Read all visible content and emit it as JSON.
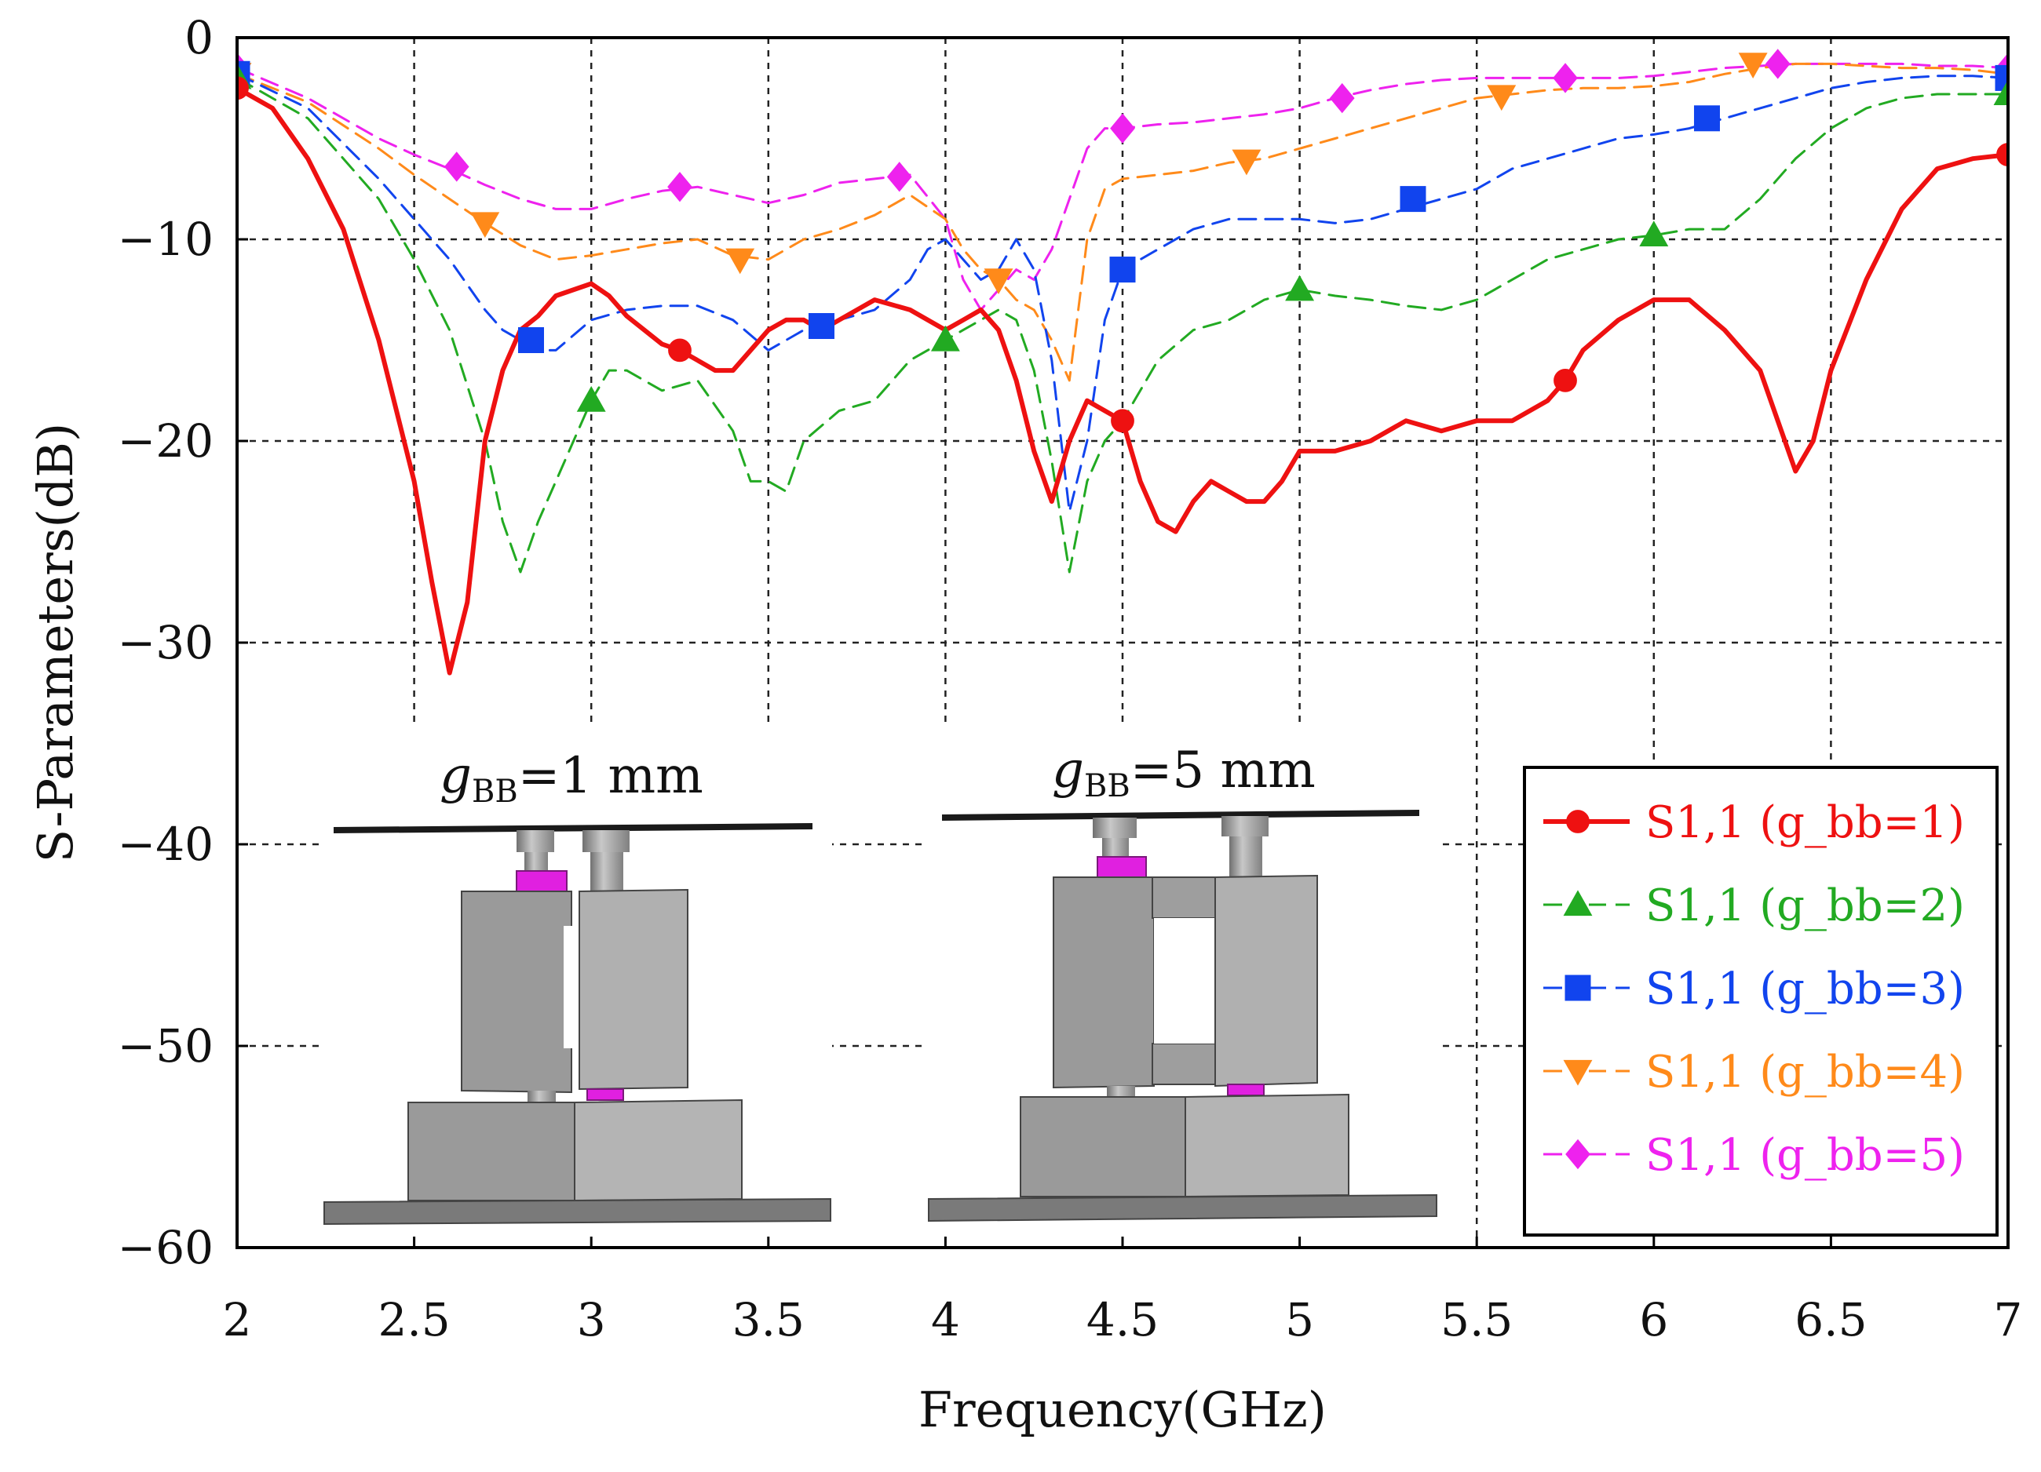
{
  "chart_data": {
    "type": "line",
    "title": "",
    "xlabel": "Frequency(GHz)",
    "ylabel": "S-Parameters(dB)",
    "xlim": [
      2,
      7
    ],
    "ylim": [
      -60,
      0
    ],
    "xticks": [
      2,
      2.5,
      3,
      3.5,
      4,
      4.5,
      5,
      5.5,
      6,
      6.5,
      7
    ],
    "xtick_labels": [
      "2",
      "2.5",
      "3",
      "3.5",
      "4",
      "4.5",
      "5",
      "5.5",
      "6",
      "6.5",
      "7"
    ],
    "yticks": [
      0,
      -10,
      -20,
      -30,
      -40,
      -50,
      -60
    ],
    "ytick_labels": [
      "0",
      "−10",
      "−20",
      "−30",
      "−40",
      "−50",
      "−60"
    ],
    "grid": true,
    "legend_position": "bottom-right",
    "series": [
      {
        "name": "S1,1 (g_bb=1)",
        "color": "#ee1111",
        "marker": "circle",
        "dash": "solid",
        "x": [
          2.0,
          2.1,
          2.2,
          2.3,
          2.4,
          2.5,
          2.55,
          2.6,
          2.65,
          2.7,
          2.75,
          2.8,
          2.85,
          2.9,
          3.0,
          3.05,
          3.1,
          3.2,
          3.25,
          3.3,
          3.35,
          3.4,
          3.5,
          3.55,
          3.6,
          3.65,
          3.7,
          3.8,
          3.9,
          4.0,
          4.05,
          4.1,
          4.15,
          4.2,
          4.25,
          4.3,
          4.35,
          4.4,
          4.45,
          4.5,
          4.55,
          4.6,
          4.65,
          4.7,
          4.75,
          4.8,
          4.85,
          4.9,
          4.95,
          5.0,
          5.05,
          5.1,
          5.2,
          5.3,
          5.4,
          5.5,
          5.6,
          5.7,
          5.75,
          5.8,
          5.9,
          6.0,
          6.1,
          6.2,
          6.3,
          6.35,
          6.4,
          6.45,
          6.5,
          6.6,
          6.7,
          6.8,
          6.9,
          7.0
        ],
        "y": [
          -2.5,
          -3.5,
          -6.0,
          -9.5,
          -15.0,
          -22.0,
          -27.0,
          -31.5,
          -28.0,
          -20.0,
          -16.5,
          -14.5,
          -13.8,
          -12.8,
          -12.2,
          -12.8,
          -13.8,
          -15.2,
          -15.5,
          -16.0,
          -16.5,
          -16.5,
          -14.5,
          -14.0,
          -14.0,
          -14.5,
          -14.0,
          -13.0,
          -13.5,
          -14.5,
          -14.0,
          -13.5,
          -14.5,
          -17.0,
          -20.5,
          -23.0,
          -20.0,
          -18.0,
          -18.5,
          -19.0,
          -22.0,
          -24.0,
          -24.5,
          -23.0,
          -22.0,
          -22.5,
          -23.0,
          -23.0,
          -22.0,
          -20.5,
          -20.5,
          -20.5,
          -20.0,
          -19.0,
          -19.5,
          -19.0,
          -19.0,
          -18.0,
          -17.0,
          -15.5,
          -14.0,
          -13.0,
          -13.0,
          -14.5,
          -16.5,
          -19.0,
          -21.5,
          -20.0,
          -16.5,
          -12.0,
          -8.5,
          -6.5,
          -6.0,
          -5.8
        ],
        "marker_x": [
          2.0,
          2.65,
          3.25,
          3.75,
          4.25,
          4.5,
          5.0,
          5.75,
          6.25,
          7.0
        ],
        "marker_y": [
          -2.5,
          -31.5,
          -15.5,
          -13.5,
          -17.5,
          -19.0,
          -20.5,
          -17.0,
          -14.5,
          -5.8
        ],
        "marker_show": [
          true,
          false,
          true,
          false,
          false,
          true,
          false,
          true,
          false,
          true
        ]
      },
      {
        "name": "S1,1 (g_bb=2)",
        "color": "#22aa22",
        "marker": "triangle-up",
        "dash": "dashed",
        "x": [
          2.0,
          2.2,
          2.4,
          2.5,
          2.6,
          2.7,
          2.75,
          2.8,
          2.85,
          2.9,
          2.95,
          3.0,
          3.05,
          3.1,
          3.2,
          3.3,
          3.4,
          3.45,
          3.5,
          3.55,
          3.6,
          3.7,
          3.8,
          3.9,
          4.0,
          4.05,
          4.1,
          4.15,
          4.2,
          4.25,
          4.3,
          4.35,
          4.4,
          4.45,
          4.5,
          4.6,
          4.7,
          4.8,
          4.9,
          5.0,
          5.1,
          5.2,
          5.3,
          5.4,
          5.5,
          5.6,
          5.7,
          5.8,
          5.9,
          6.0,
          6.1,
          6.2,
          6.3,
          6.4,
          6.5,
          6.6,
          6.7,
          6.8,
          6.9,
          7.0
        ],
        "y": [
          -2.0,
          -4.0,
          -8.0,
          -11.0,
          -14.5,
          -20.0,
          -24.0,
          -26.5,
          -24.0,
          -22.0,
          -20.0,
          -18.0,
          -16.5,
          -16.5,
          -17.5,
          -17.0,
          -19.5,
          -22.0,
          -22.0,
          -22.5,
          -20.0,
          -18.5,
          -18.0,
          -16.0,
          -15.0,
          -14.5,
          -14.0,
          -13.5,
          -14.0,
          -16.5,
          -21.0,
          -26.5,
          -22.0,
          -20.0,
          -19.0,
          -16.0,
          -14.5,
          -14.0,
          -13.0,
          -12.5,
          -12.8,
          -13.0,
          -13.3,
          -13.5,
          -13.0,
          -12.0,
          -11.0,
          -10.5,
          -10.0,
          -9.8,
          -9.5,
          -9.5,
          -8.0,
          -6.0,
          -4.5,
          -3.5,
          -3.0,
          -2.8,
          -2.8,
          -2.8
        ],
        "marker_x": [
          2.0,
          3.0,
          4.0,
          4.5,
          5.0,
          6.0,
          7.0
        ],
        "marker_y": [
          -2.0,
          -18.0,
          -15.0,
          -19.0,
          -12.5,
          -9.8,
          -2.8
        ],
        "marker_show": [
          true,
          true,
          true,
          false,
          true,
          true,
          true
        ]
      },
      {
        "name": "S1,1 (g_bb=3)",
        "color": "#1144ee",
        "marker": "square",
        "dash": "dashed",
        "x": [
          2.0,
          2.2,
          2.4,
          2.5,
          2.6,
          2.7,
          2.75,
          2.8,
          2.85,
          2.9,
          3.0,
          3.1,
          3.2,
          3.3,
          3.4,
          3.5,
          3.55,
          3.6,
          3.65,
          3.7,
          3.8,
          3.9,
          3.95,
          4.0,
          4.05,
          4.1,
          4.15,
          4.2,
          4.25,
          4.3,
          4.35,
          4.4,
          4.45,
          4.5,
          4.6,
          4.7,
          4.8,
          4.9,
          5.0,
          5.1,
          5.2,
          5.3,
          5.4,
          5.5,
          5.6,
          5.7,
          5.8,
          5.9,
          6.0,
          6.1,
          6.2,
          6.3,
          6.4,
          6.5,
          6.6,
          6.7,
          6.8,
          6.9,
          7.0
        ],
        "y": [
          -1.8,
          -3.5,
          -7.0,
          -9.0,
          -11.0,
          -13.5,
          -14.5,
          -15.0,
          -15.5,
          -15.5,
          -14.0,
          -13.5,
          -13.3,
          -13.3,
          -14.0,
          -15.5,
          -15.0,
          -14.5,
          -14.3,
          -14.0,
          -13.5,
          -12.0,
          -10.5,
          -10.0,
          -11.0,
          -12.0,
          -11.5,
          -10.0,
          -11.5,
          -16.0,
          -23.5,
          -20.0,
          -14.0,
          -11.5,
          -10.5,
          -9.5,
          -9.0,
          -9.0,
          -9.0,
          -9.2,
          -9.0,
          -8.5,
          -8.0,
          -7.5,
          -6.5,
          -6.0,
          -5.5,
          -5.0,
          -4.8,
          -4.5,
          -4.0,
          -3.5,
          -3.0,
          -2.5,
          -2.2,
          -2.0,
          -1.9,
          -1.9,
          -2.0
        ],
        "marker_x": [
          2.0,
          2.83,
          3.25,
          3.65,
          4.15,
          4.5,
          5.0,
          5.32,
          5.75,
          6.15,
          6.6,
          7.0
        ],
        "marker_y": [
          -1.8,
          -15.0,
          -13.3,
          -14.3,
          -11.5,
          -11.5,
          -9.0,
          -8.0,
          -5.5,
          -4.0,
          -2.2,
          -2.0
        ],
        "marker_show": [
          true,
          true,
          false,
          true,
          false,
          true,
          false,
          true,
          false,
          true,
          false,
          true
        ]
      },
      {
        "name": "S1,1 (g_bb=4)",
        "color": "#ff8a1a",
        "marker": "triangle-down",
        "dash": "dashed",
        "x": [
          2.0,
          2.2,
          2.4,
          2.5,
          2.6,
          2.7,
          2.8,
          2.9,
          3.0,
          3.1,
          3.2,
          3.3,
          3.4,
          3.5,
          3.6,
          3.7,
          3.8,
          3.9,
          4.0,
          4.05,
          4.1,
          4.15,
          4.2,
          4.25,
          4.3,
          4.35,
          4.4,
          4.45,
          4.5,
          4.6,
          4.7,
          4.8,
          4.9,
          5.0,
          5.1,
          5.2,
          5.3,
          5.4,
          5.5,
          5.6,
          5.7,
          5.8,
          5.9,
          6.0,
          6.1,
          6.2,
          6.3,
          6.4,
          6.5,
          6.6,
          6.7,
          6.8,
          6.9,
          7.0
        ],
        "y": [
          -1.8,
          -3.2,
          -5.5,
          -6.8,
          -8.0,
          -9.2,
          -10.3,
          -11.0,
          -10.8,
          -10.5,
          -10.2,
          -10.0,
          -10.8,
          -11.0,
          -10.0,
          -9.5,
          -8.8,
          -7.8,
          -9.0,
          -10.5,
          -11.5,
          -12.0,
          -13.0,
          -13.5,
          -15.0,
          -17.0,
          -10.0,
          -7.5,
          -7.0,
          -6.8,
          -6.6,
          -6.2,
          -6.0,
          -5.5,
          -5.0,
          -4.5,
          -4.0,
          -3.5,
          -3.0,
          -2.8,
          -2.6,
          -2.5,
          -2.5,
          -2.4,
          -2.2,
          -1.8,
          -1.5,
          -1.3,
          -1.3,
          -1.4,
          -1.5,
          -1.5,
          -1.6,
          -1.8
        ],
        "marker_x": [
          2.0,
          2.7,
          3.0,
          3.42,
          3.87,
          4.15,
          4.5,
          4.85,
          5.0,
          5.57,
          6.0,
          6.28,
          7.0
        ],
        "marker_y": [
          -1.8,
          -9.2,
          -10.8,
          -11.0,
          -8.0,
          -12.0,
          -7.0,
          -6.1,
          -5.5,
          -2.9,
          -2.4,
          -1.3,
          -1.8
        ],
        "marker_show": [
          true,
          true,
          false,
          true,
          false,
          true,
          false,
          true,
          false,
          true,
          false,
          true,
          false
        ]
      },
      {
        "name": "S1,1 (g_bb=5)",
        "color": "#ee22ee",
        "marker": "diamond",
        "dash": "dashed",
        "x": [
          2.0,
          2.2,
          2.4,
          2.5,
          2.6,
          2.7,
          2.8,
          2.9,
          3.0,
          3.1,
          3.2,
          3.3,
          3.4,
          3.5,
          3.6,
          3.7,
          3.8,
          3.9,
          4.0,
          4.05,
          4.1,
          4.15,
          4.2,
          4.25,
          4.3,
          4.35,
          4.4,
          4.45,
          4.5,
          4.6,
          4.7,
          4.8,
          4.9,
          5.0,
          5.1,
          5.2,
          5.3,
          5.4,
          5.5,
          5.6,
          5.7,
          5.8,
          5.9,
          6.0,
          6.1,
          6.2,
          6.3,
          6.4,
          6.5,
          6.6,
          6.7,
          6.8,
          6.9,
          7.0
        ],
        "y": [
          -1.5,
          -3.0,
          -5.0,
          -5.8,
          -6.5,
          -7.3,
          -8.0,
          -8.5,
          -8.5,
          -8.0,
          -7.6,
          -7.4,
          -7.8,
          -8.2,
          -7.8,
          -7.2,
          -7.0,
          -6.8,
          -9.0,
          -12.0,
          -13.5,
          -12.5,
          -11.5,
          -12.0,
          -10.5,
          -8.0,
          -5.5,
          -4.5,
          -4.5,
          -4.3,
          -4.2,
          -4.0,
          -3.8,
          -3.5,
          -3.0,
          -2.6,
          -2.3,
          -2.1,
          -2.0,
          -2.0,
          -2.0,
          -2.0,
          -2.0,
          -1.9,
          -1.7,
          -1.5,
          -1.4,
          -1.3,
          -1.3,
          -1.3,
          -1.3,
          -1.4,
          -1.4,
          -1.5
        ],
        "marker_x": [
          2.0,
          2.62,
          3.25,
          3.87,
          4.5,
          5.12,
          5.75,
          6.35,
          7.0
        ],
        "marker_y": [
          -1.5,
          -6.4,
          -7.4,
          -6.9,
          -4.5,
          -3.0,
          -2.0,
          -1.3,
          -1.5
        ],
        "marker_show": [
          true,
          true,
          true,
          true,
          true,
          true,
          true,
          true,
          true
        ]
      }
    ],
    "insets": [
      {
        "prefix": "g",
        "subscript": "BB",
        "suffix": "=1 mm"
      },
      {
        "prefix": "g",
        "subscript": "BB",
        "suffix": "=5 mm"
      }
    ]
  }
}
